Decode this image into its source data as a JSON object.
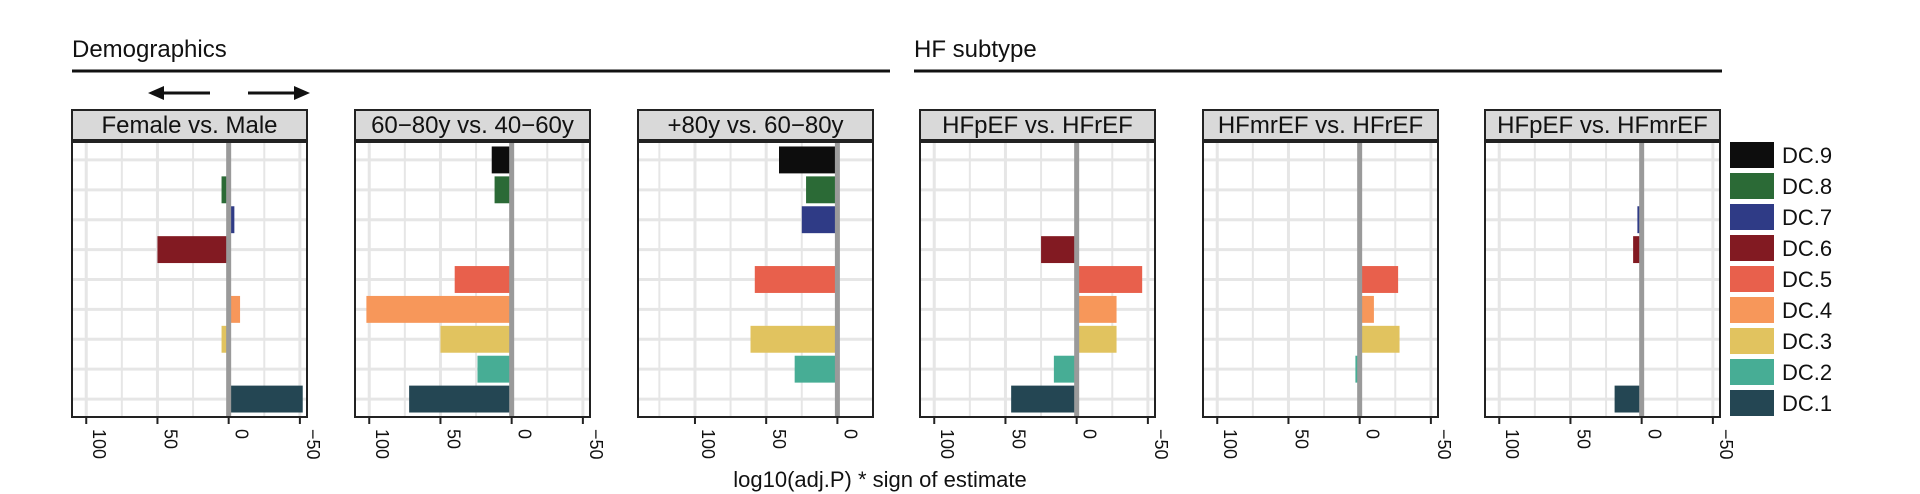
{
  "groups": [
    {
      "title": "Demographics"
    },
    {
      "title": "HF subtype"
    }
  ],
  "xaxis_title": "log10(adj.P) * sign of estimate",
  "direction_arrows": [
    "left-arrow-icon",
    "right-arrow-icon"
  ],
  "legend": [
    {
      "label": "DC.9",
      "color": "#0d0d0d"
    },
    {
      "label": "DC.8",
      "color": "#2b6a36"
    },
    {
      "label": "DC.7",
      "color": "#2f3b86"
    },
    {
      "label": "DC.6",
      "color": "#821a22"
    },
    {
      "label": "DC.5",
      "color": "#e8604c"
    },
    {
      "label": "DC.4",
      "color": "#f7975a"
    },
    {
      "label": "DC.3",
      "color": "#e1c35f"
    },
    {
      "label": "DC.2",
      "color": "#47ad95"
    },
    {
      "label": "DC.1",
      "color": "#244653"
    }
  ],
  "chart_data": [
    {
      "type": "bar",
      "title": "Female vs. Male",
      "categories": [
        "DC.9",
        "DC.8",
        "DC.7",
        "DC.6",
        "DC.5",
        "DC.4",
        "DC.3",
        "DC.2",
        "DC.1"
      ],
      "values": [
        0,
        5,
        -4,
        50,
        0,
        -8,
        5,
        0,
        -52
      ],
      "xlim": [
        110,
        -55
      ],
      "xticks": [
        100,
        50,
        0,
        -50
      ]
    },
    {
      "type": "bar",
      "title": "60−80y vs. 40−60y",
      "categories": [
        "DC.9",
        "DC.8",
        "DC.7",
        "DC.6",
        "DC.5",
        "DC.4",
        "DC.3",
        "DC.2",
        "DC.1"
      ],
      "values": [
        14,
        12,
        0,
        0,
        40,
        102,
        50,
        24,
        72
      ],
      "xlim": [
        110,
        -55
      ],
      "xticks": [
        100,
        50,
        0,
        -50
      ]
    },
    {
      "type": "bar",
      "title": "+80y vs. 60−80y",
      "categories": [
        "DC.9",
        "DC.8",
        "DC.7",
        "DC.6",
        "DC.5",
        "DC.4",
        "DC.3",
        "DC.2",
        "DC.1"
      ],
      "values": [
        41,
        22,
        25,
        0,
        58,
        0,
        61,
        30,
        0
      ],
      "xlim": [
        140,
        -25
      ],
      "xticks": [
        100,
        50,
        0
      ]
    },
    {
      "type": "bar",
      "title": "HFpEF vs. HFrEF",
      "categories": [
        "DC.9",
        "DC.8",
        "DC.7",
        "DC.6",
        "DC.5",
        "DC.4",
        "DC.3",
        "DC.2",
        "DC.1"
      ],
      "values": [
        0,
        0,
        0,
        25,
        -46,
        -28,
        -28,
        16,
        46
      ],
      "xlim": [
        110,
        -55
      ],
      "xticks": [
        100,
        50,
        0,
        -50
      ]
    },
    {
      "type": "bar",
      "title": "HFmrEF vs. HFrEF",
      "categories": [
        "DC.9",
        "DC.8",
        "DC.7",
        "DC.6",
        "DC.5",
        "DC.4",
        "DC.3",
        "DC.2",
        "DC.1"
      ],
      "values": [
        0,
        0,
        0,
        0,
        -27,
        -10,
        -28,
        3,
        0
      ],
      "xlim": [
        110,
        -55
      ],
      "xticks": [
        100,
        50,
        0,
        -50
      ]
    },
    {
      "type": "bar",
      "title": "HFpEF vs. HFmrEF",
      "categories": [
        "DC.9",
        "DC.8",
        "DC.7",
        "DC.6",
        "DC.5",
        "DC.4",
        "DC.3",
        "DC.2",
        "DC.1"
      ],
      "values": [
        0,
        0,
        3,
        6,
        0,
        0,
        0,
        0,
        19
      ],
      "xlim": [
        110,
        -55
      ],
      "xticks": [
        100,
        50,
        0,
        -50
      ]
    }
  ]
}
